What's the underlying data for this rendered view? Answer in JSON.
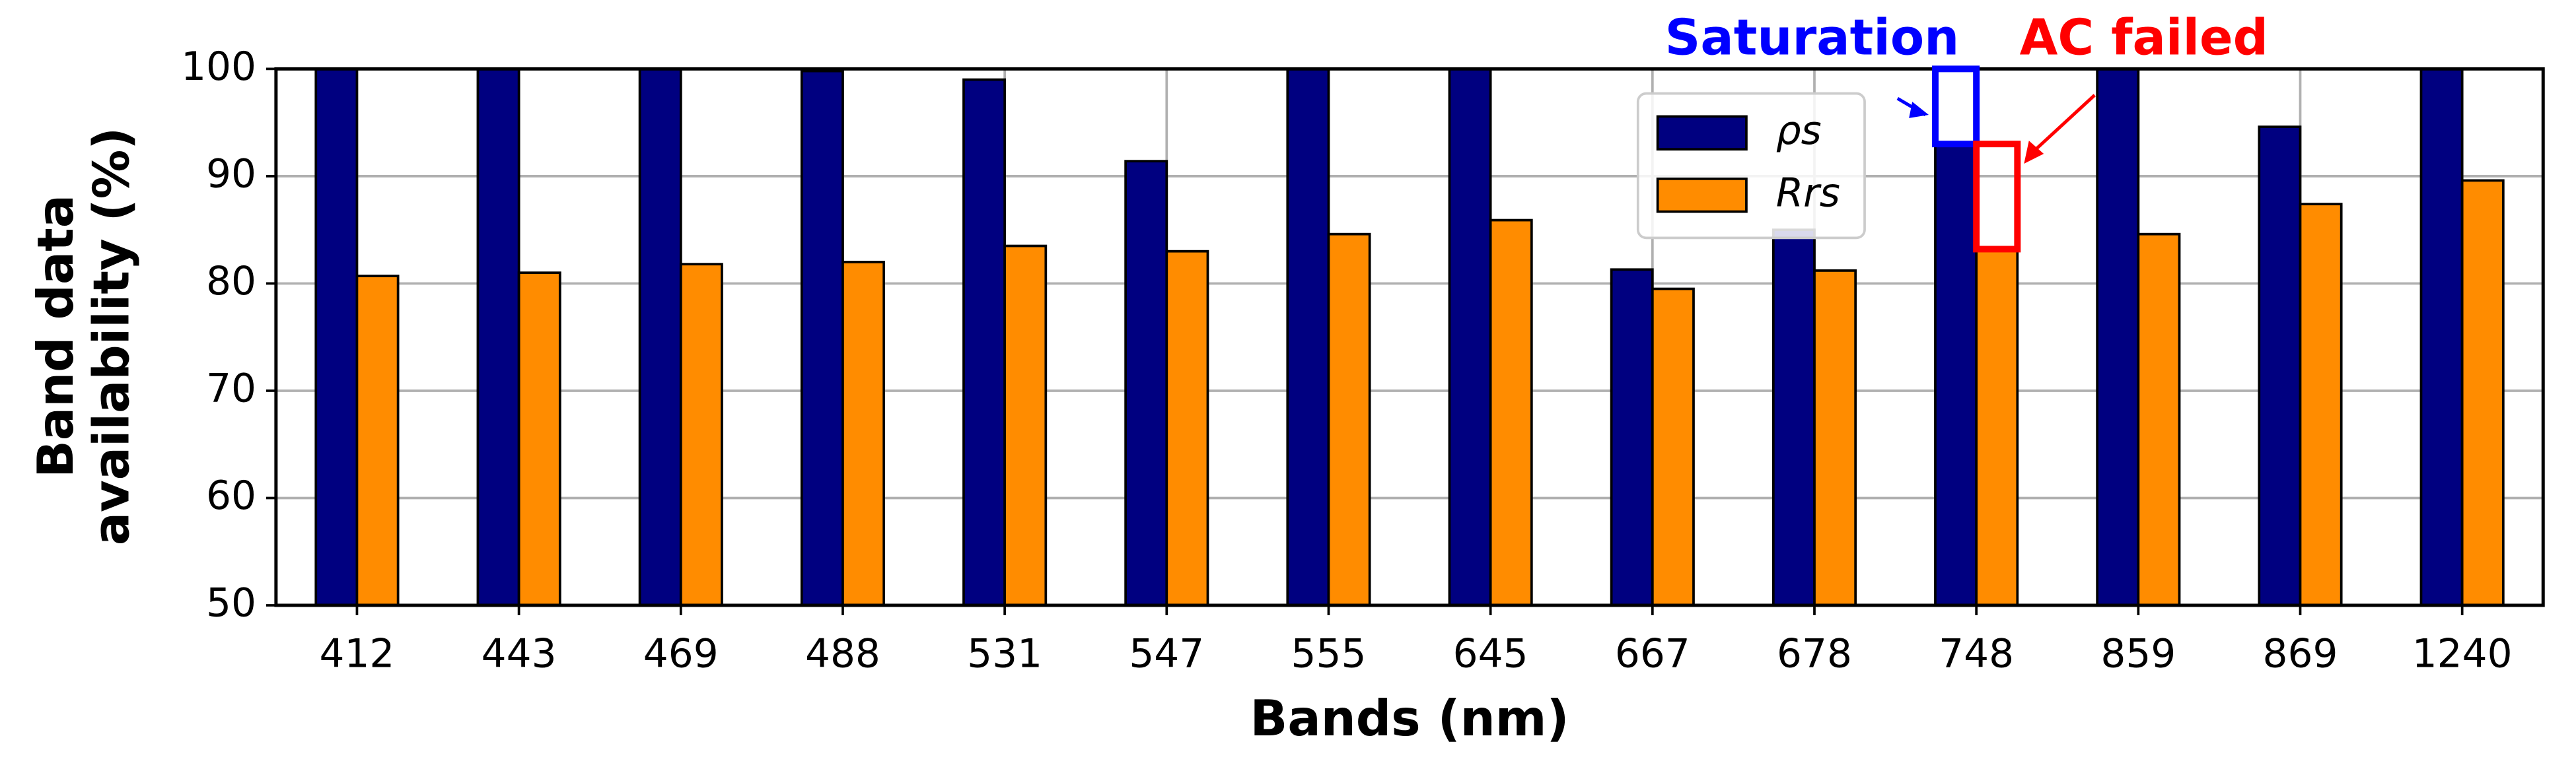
{
  "chart_data": {
    "type": "bar",
    "xlabel": "Bands (nm)",
    "ylabel": [
      "Band data",
      "availability (%)"
    ],
    "categories": [
      "412",
      "443",
      "469",
      "488",
      "531",
      "547",
      "555",
      "645",
      "667",
      "678",
      "748",
      "859",
      "869",
      "1240"
    ],
    "series": [
      {
        "name": "ρs",
        "color": "#000080",
        "values": [
          100,
          100,
          100,
          99.8,
          99,
          91.4,
          100,
          100,
          81.3,
          85,
          93,
          100,
          94.6,
          100
        ]
      },
      {
        "name": "Rrs",
        "color": "#ff8c00",
        "values": [
          80.7,
          81,
          81.8,
          82,
          83.5,
          83,
          84.6,
          85.9,
          79.5,
          81.2,
          83.2,
          84.6,
          87.4,
          89.6
        ]
      }
    ],
    "ylim": [
      50,
      100
    ],
    "yticks": [
      50,
      60,
      70,
      80,
      90,
      100
    ],
    "grid": true,
    "legend": "upper center",
    "annotations": [
      {
        "text": "Saturation",
        "color": "#0000ff"
      },
      {
        "text": "AC failed",
        "color": "#ff0000"
      }
    ]
  }
}
